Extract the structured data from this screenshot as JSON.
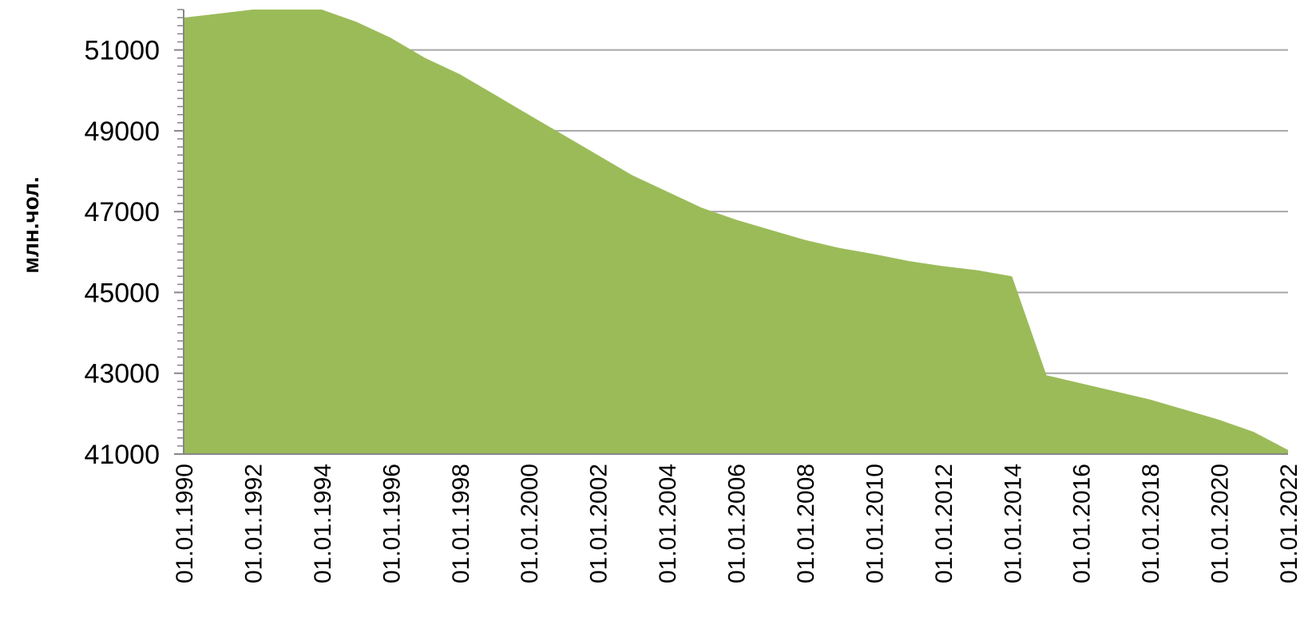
{
  "chart_data": {
    "type": "area",
    "ylabel": "млн.чол.",
    "ylim": [
      41000,
      52000
    ],
    "yticks": [
      41000,
      43000,
      45000,
      47000,
      49000,
      51000
    ],
    "ytick_labels": [
      "41000",
      "43000",
      "45000",
      "47000",
      "49000",
      "51000"
    ],
    "xlim": [
      "01.01.1990",
      "01.01.2022"
    ],
    "xtick_labels": [
      "01.01.1990",
      "01.01.1992",
      "01.01.1994",
      "01.01.1996",
      "01.01.1998",
      "01.01.2000",
      "01.01.2002",
      "01.01.2004",
      "01.01.2006",
      "01.01.2008",
      "01.01.2010",
      "01.01.2012",
      "01.01.2014",
      "01.01.2016",
      "01.01.2018",
      "01.01.2020",
      "01.01.2022"
    ],
    "grid": true,
    "area_color": "#9bbb59",
    "grid_color": "#a6a6a6",
    "series": [
      {
        "x": [
          "01.01.1990",
          "01.01.1991",
          "01.01.1992",
          "01.01.1993",
          "01.01.1994",
          "01.01.1995",
          "01.01.1996",
          "01.01.1997",
          "01.01.1998",
          "01.01.1999",
          "01.01.2000",
          "01.01.2001",
          "01.01.2002",
          "01.01.2003",
          "01.01.2004",
          "01.01.2005",
          "01.01.2006",
          "01.01.2007",
          "01.01.2008",
          "01.01.2009",
          "01.01.2010",
          "01.01.2011",
          "01.01.2012",
          "01.01.2013",
          "01.01.2014",
          "01.01.2015",
          "01.01.2016",
          "01.01.2017",
          "01.01.2018",
          "01.01.2019",
          "01.01.2020",
          "01.01.2021",
          "01.01.2022"
        ],
        "values": [
          51800,
          51900,
          52000,
          52050,
          52100,
          51700,
          51300,
          50800,
          50400,
          49900,
          49400,
          48900,
          48400,
          47900,
          47500,
          47100,
          46800,
          46550,
          46300,
          46100,
          45950,
          45780,
          45650,
          45550,
          45400,
          42950,
          42750,
          42550,
          42350,
          42100,
          41850,
          41550,
          41100
        ]
      }
    ]
  }
}
